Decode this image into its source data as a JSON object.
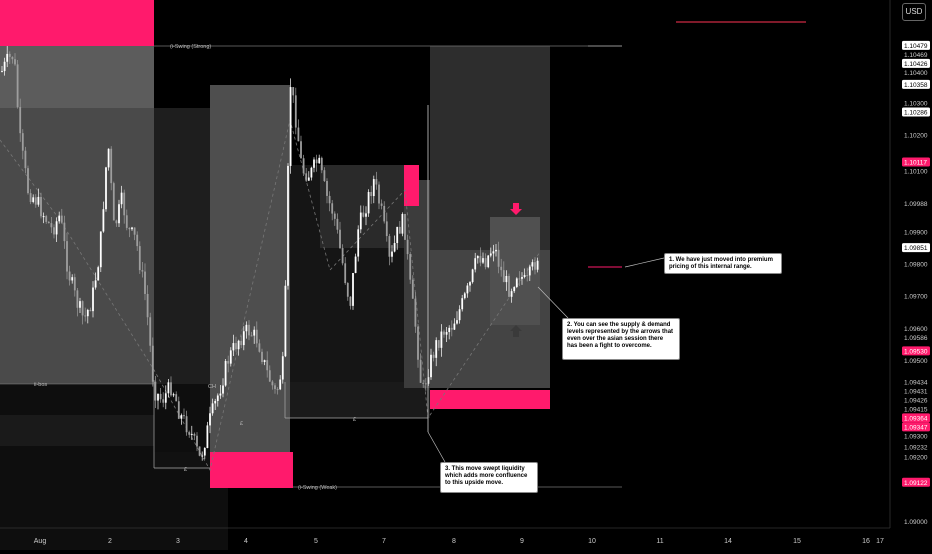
{
  "currency_label": "USD",
  "chart_data": {
    "type": "candlestick",
    "x_ticks": [
      "Aug",
      "2",
      "3",
      "4",
      "5",
      "7",
      "8",
      "9",
      "10",
      "11",
      "14",
      "15",
      "16",
      "17"
    ],
    "price_ticks": [
      1.10469,
      1.104,
      1.103,
      1.102,
      1.101,
      1.0998,
      1.099,
      1.098,
      1.097,
      1.0958,
      1.095,
      1.0942,
      1.0941,
      1.0932,
      1.0923,
      1.091,
      1.09
    ],
    "price_range": [
      1.0898,
      1.1062
    ],
    "price_labels": [
      {
        "text": "1.10479",
        "value": 1.10479,
        "style": "white"
      },
      {
        "text": "1.10469",
        "value": 1.10469,
        "style": "plain"
      },
      {
        "text": "1.10426",
        "value": 1.10426,
        "style": "white"
      },
      {
        "text": "1.10400",
        "value": 1.104,
        "style": "plain"
      },
      {
        "text": "1.10358",
        "value": 1.10358,
        "style": "white"
      },
      {
        "text": "1.10300",
        "value": 1.103,
        "style": "plain"
      },
      {
        "text": "1.10286",
        "value": 1.10286,
        "style": "white"
      },
      {
        "text": "1.10200",
        "value": 1.102,
        "style": "plain"
      },
      {
        "text": "1.10117",
        "value": 1.10117,
        "style": "pink"
      },
      {
        "text": "1.10100",
        "value": 1.101,
        "style": "plain"
      },
      {
        "text": "1.09988",
        "value": 1.09988,
        "style": "plain"
      },
      {
        "text": "1.09900",
        "value": 1.099,
        "style": "plain"
      },
      {
        "text": "1.09851",
        "value": 1.09851,
        "style": "white"
      },
      {
        "text": "1.09800",
        "value": 1.098,
        "style": "plain"
      },
      {
        "text": "1.09700",
        "value": 1.097,
        "style": "plain"
      },
      {
        "text": "1.09586",
        "value": 1.09586,
        "style": "plain"
      },
      {
        "text": "1.09600",
        "value": 1.096,
        "style": "plain"
      },
      {
        "text": "1.09530",
        "value": 1.0953,
        "style": "pink"
      },
      {
        "text": "1.09500",
        "value": 1.095,
        "style": "plain"
      },
      {
        "text": "1.09434",
        "value": 1.09434,
        "style": "plain"
      },
      {
        "text": "1.09431",
        "value": 1.09431,
        "style": "plain"
      },
      {
        "text": "1.09426",
        "value": 1.09426,
        "style": "plain"
      },
      {
        "text": "1.09415",
        "value": 1.09415,
        "style": "plain"
      },
      {
        "text": "1.09364",
        "value": 1.09364,
        "style": "pink"
      },
      {
        "text": "1.09347",
        "value": 1.09347,
        "style": "pink"
      },
      {
        "text": "1.09300",
        "value": 1.093,
        "style": "plain"
      },
      {
        "text": "1.09232",
        "value": 1.09232,
        "style": "plain"
      },
      {
        "text": "1.09200",
        "value": 1.092,
        "style": "plain"
      },
      {
        "text": "1.09122",
        "value": 1.09122,
        "style": "pink"
      },
      {
        "text": "1.09000",
        "value": 1.09,
        "style": "plain"
      }
    ],
    "line_labels": {
      "strong_swing": "(i-Swing (Strong)",
      "weak_swing": "(i-Swing (Weak)",
      "ibos": "ii-bos",
      "choch": "CH",
      "eq1": "£",
      "eq2": "£",
      "eq3": "£"
    },
    "annotations": [
      {
        "id": "note-1",
        "text": "1. We have just moved into premium pricing of this internal range."
      },
      {
        "id": "note-2",
        "text": "2. You can see the supply & demand levels represented by the arrows that even over the asian session there has been a fight to overcome."
      },
      {
        "id": "note-3",
        "text": "3. This move swept liquidity which adds more confluence to this upside move."
      }
    ],
    "colors": {
      "bull": "#ffffff",
      "bear": "#9e9e9e",
      "supply": "#ff1a6c",
      "zone_light": "#5a5a5a",
      "zone_dark": "#2a2a2a",
      "background": "#000000"
    }
  }
}
